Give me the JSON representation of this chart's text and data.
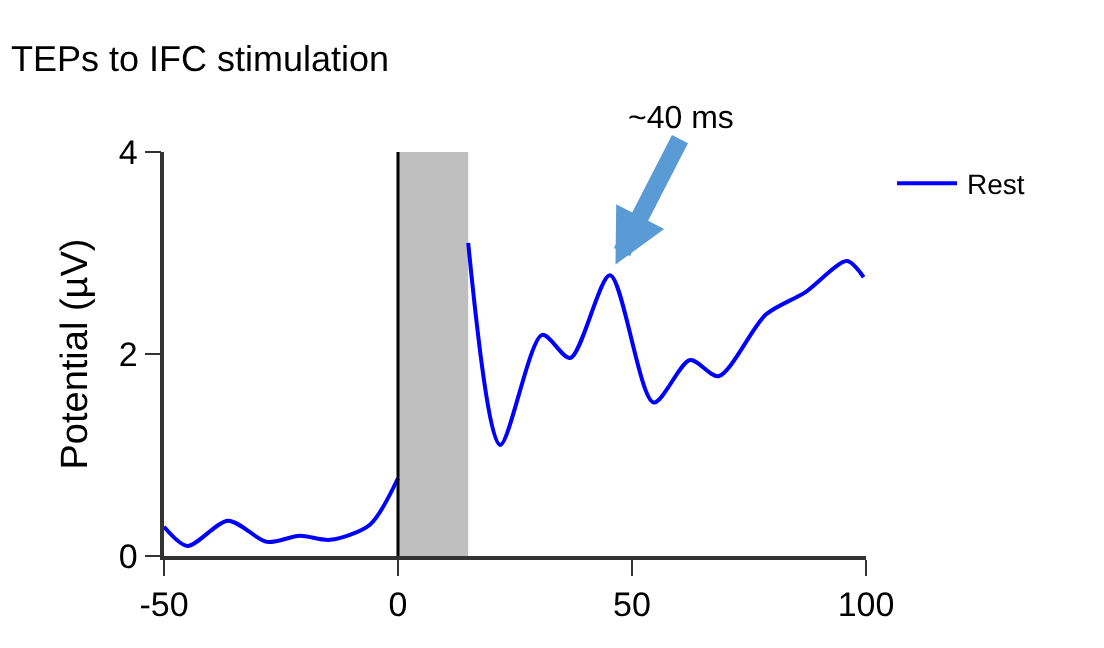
{
  "chart_data": {
    "type": "line",
    "title": "TEPs to IFC stimulation",
    "ylabel": "Potential (µV)",
    "xlim": [
      -50,
      100
    ],
    "ylim": [
      0,
      4
    ],
    "xticks": [
      -50,
      0,
      50,
      100
    ],
    "yticks": [
      0,
      2,
      4
    ],
    "grid": false,
    "legend": "top right",
    "marker": "none",
    "line_style": "solid",
    "series": [
      {
        "name": "Rest",
        "color": "#0000ff",
        "x": [
          -50,
          -45,
          -36.3,
          -28,
          -21,
          -14.5,
          -6,
          0,
          null,
          15,
          21.8,
          30.8,
          36.8,
          45.3,
          54.6,
          62.4,
          68.5,
          78.6,
          87,
          95.9,
          99.5
        ],
        "values": [
          0.29,
          0.1,
          0.35,
          0.14,
          0.2,
          0.16,
          0.31,
          0.77,
          null,
          3.1,
          1.1,
          2.19,
          1.96,
          2.78,
          1.52,
          1.94,
          1.78,
          2.39,
          2.61,
          2.92,
          2.76
        ]
      }
    ],
    "bands": [
      {
        "axis": "x",
        "from": 0,
        "to": 15,
        "color": "#bfbfbf"
      }
    ],
    "ref_lines": [
      {
        "axis": "x",
        "value": 0,
        "color": "#000000",
        "line_style": "solid"
      }
    ],
    "annotations": [
      {
        "text": "~40 ms",
        "x": 45.3,
        "y": 2.78
      }
    ]
  }
}
